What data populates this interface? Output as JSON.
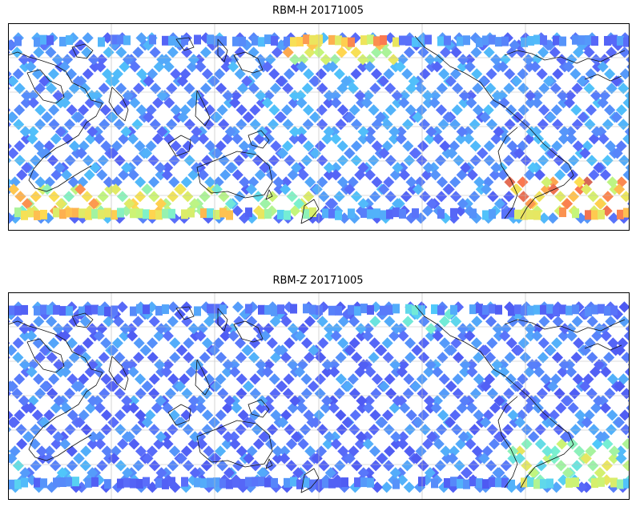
{
  "panels": [
    {
      "title": "RBM-H 20171005",
      "grid": true,
      "lon_range": [
        120,
        300
      ],
      "lat_range": [
        -30,
        30
      ],
      "colormap": "jet",
      "swath_value_base": 0.15,
      "high_zones": [
        {
          "lon": [
            200,
            232
          ],
          "lat": [
            22,
            28
          ],
          "value": 0.9
        },
        {
          "lon": [
            150,
            185
          ],
          "lat": [
            -28,
            -22
          ],
          "value": 0.8
        },
        {
          "lon": [
            120,
            150
          ],
          "lat": [
            -28,
            -22
          ],
          "value": 0.85
        },
        {
          "lon": [
            265,
            300
          ],
          "lat": [
            -28,
            -18
          ],
          "value": 0.95
        },
        {
          "lon": [
            190,
            210
          ],
          "lat": [
            -28,
            -23
          ],
          "value": 0.75
        }
      ]
    },
    {
      "title": "RBM-Z 20171005",
      "grid": true,
      "lon_range": [
        120,
        300
      ],
      "lat_range": [
        -30,
        30
      ],
      "colormap": "jet",
      "swath_value_base": 0.12,
      "high_zones": [
        {
          "lon": [
            225,
            255
          ],
          "lat": [
            22,
            28
          ],
          "value": 0.5
        },
        {
          "lon": [
            265,
            300
          ],
          "lat": [
            -28,
            -16
          ],
          "value": 0.7
        },
        {
          "lon": [
            120,
            150
          ],
          "lat": [
            -28,
            -24
          ],
          "value": 0.45
        }
      ]
    }
  ]
}
